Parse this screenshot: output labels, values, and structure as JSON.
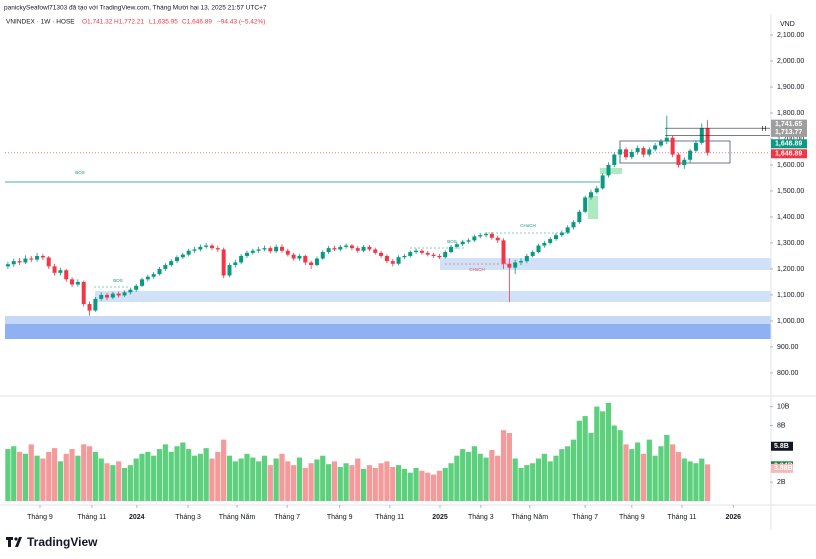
{
  "header": {
    "attribution": "panickySeafowl71303 đã tạo với TradingView.com, Tháng Mười hai 13, 2025 21:57 UTC+7",
    "brand": "TradingView"
  },
  "chart_data": [
    {
      "type": "candlestick",
      "title": "VNINDEX · 1W · HOSE",
      "ohlc_labels": [
        "O1,741.32",
        "H1,772.21",
        "L1,635.95",
        "C1,646.89",
        "−94.43 (−5.42%)"
      ],
      "currency": "VND",
      "up_color": "#089981",
      "down_color": "#f23645",
      "xlim": [
        -0.5,
        130.7
      ],
      "xticks": [
        {
          "value": 5.5,
          "label": "Tháng 9"
        },
        {
          "value": 14.4,
          "label": "Tháng 11"
        },
        {
          "value": 22.1,
          "label": "2024"
        },
        {
          "value": 30.9,
          "label": "Tháng 3"
        },
        {
          "value": 39.3,
          "label": "Tháng Năm"
        },
        {
          "value": 47.9,
          "label": "Tháng 7"
        },
        {
          "value": 56.9,
          "label": "Tháng 9"
        },
        {
          "value": 65.5,
          "label": "Tháng 11"
        },
        {
          "value": 74.1,
          "label": "2025"
        },
        {
          "value": 81.1,
          "label": "Tháng 3"
        },
        {
          "value": 89.5,
          "label": "Tháng Năm"
        },
        {
          "value": 99.0,
          "label": "Tháng 7"
        },
        {
          "value": 107.0,
          "label": "Tháng 9"
        },
        {
          "value": 115.6,
          "label": "Tháng 11"
        },
        {
          "value": 124.4,
          "label": "2026"
        }
      ],
      "ylim": [
        715,
        2177
      ],
      "yticks": [
        {
          "value": 800,
          "label": "800.00"
        },
        {
          "value": 900,
          "label": "900.00"
        },
        {
          "value": 1000,
          "label": "1,000.00"
        },
        {
          "value": 1100,
          "label": "1,100.00"
        },
        {
          "value": 1200,
          "label": "1,200.00"
        },
        {
          "value": 1300,
          "label": "1,300.00"
        },
        {
          "value": 1400,
          "label": "1,400.00"
        },
        {
          "value": 1500,
          "label": "1,500.00"
        },
        {
          "value": 1600,
          "label": "1,600.00"
        },
        {
          "value": 1700,
          "label": "1,700.00"
        },
        {
          "value": 1800,
          "label": "1,800.00"
        },
        {
          "value": 1900,
          "label": "1,900.00"
        },
        {
          "value": 2000,
          "label": "2,000.00"
        },
        {
          "value": 2100,
          "label": "2,100.00"
        }
      ],
      "price_labels": [
        {
          "value": 1741.65,
          "label": "1,741.65",
          "color": "#9e9e9e"
        },
        {
          "value": 1713.77,
          "label": "1,713.77",
          "color": "#9e9e9e"
        },
        {
          "value": 1646.89,
          "label": "1,646.89",
          "color": "#089981"
        },
        {
          "value": 1646.89,
          "label": "1,646.89",
          "color": "#f23645"
        }
      ],
      "annotations": [
        "BOS",
        "BOS",
        "BOS",
        "CHoCH",
        "CHoCH",
        "H"
      ],
      "open": [
        1210,
        1218,
        1230,
        1225,
        1240,
        1236,
        1250,
        1244,
        1210,
        1185,
        1195,
        1160,
        1140,
        1150,
        1065,
        1040,
        1085,
        1100,
        1090,
        1105,
        1098,
        1110,
        1120,
        1135,
        1160,
        1170,
        1180,
        1200,
        1215,
        1230,
        1245,
        1255,
        1270,
        1275,
        1285,
        1290,
        1280,
        1275,
        1175,
        1215,
        1225,
        1250,
        1262,
        1270,
        1275,
        1280,
        1268,
        1285,
        1270,
        1255,
        1240,
        1250,
        1225,
        1215,
        1240,
        1265,
        1280,
        1275,
        1285,
        1290,
        1280,
        1270,
        1285,
        1275,
        1262,
        1250,
        1230,
        1220,
        1245,
        1250,
        1265,
        1270,
        1262,
        1255,
        1250,
        1245,
        1265,
        1285,
        1295,
        1305,
        1310,
        1325,
        1330,
        1335,
        1320,
        1310,
        1220,
        1205,
        1225,
        1230,
        1250,
        1265,
        1290,
        1300,
        1315,
        1330,
        1340,
        1360,
        1380,
        1420,
        1475,
        1495,
        1510,
        1560,
        1600,
        1640,
        1660,
        1630,
        1650,
        1665,
        1640,
        1660,
        1675,
        1690,
        1705,
        1640,
        1600,
        1620,
        1655,
        1685,
        1741.32
      ],
      "high": [
        1228,
        1240,
        1242,
        1252,
        1250,
        1262,
        1258,
        1250,
        1220,
        1205,
        1200,
        1168,
        1160,
        1155,
        1075,
        1092,
        1110,
        1108,
        1112,
        1112,
        1118,
        1128,
        1142,
        1166,
        1178,
        1188,
        1208,
        1222,
        1238,
        1252,
        1262,
        1278,
        1285,
        1294,
        1300,
        1298,
        1290,
        1282,
        1222,
        1235,
        1258,
        1270,
        1278,
        1285,
        1290,
        1288,
        1294,
        1295,
        1278,
        1262,
        1258,
        1255,
        1232,
        1248,
        1272,
        1288,
        1290,
        1292,
        1298,
        1296,
        1288,
        1292,
        1292,
        1282,
        1270,
        1256,
        1238,
        1252,
        1258,
        1272,
        1278,
        1276,
        1270,
        1262,
        1258,
        1272,
        1292,
        1302,
        1312,
        1318,
        1332,
        1338,
        1342,
        1342,
        1328,
        1318,
        1240,
        1235,
        1240,
        1258,
        1272,
        1298,
        1308,
        1322,
        1338,
        1348,
        1368,
        1388,
        1428,
        1482,
        1505,
        1520,
        1568,
        1610,
        1650,
        1672,
        1668,
        1660,
        1675,
        1672,
        1668,
        1685,
        1700,
        1790,
        1712,
        1648,
        1630,
        1662,
        1695,
        1760,
        1772.21
      ],
      "low": [
        1200,
        1208,
        1215,
        1218,
        1226,
        1228,
        1234,
        1200,
        1175,
        1175,
        1150,
        1130,
        1132,
        1055,
        1020,
        1035,
        1078,
        1080,
        1084,
        1090,
        1092,
        1102,
        1112,
        1130,
        1152,
        1162,
        1175,
        1192,
        1208,
        1222,
        1238,
        1248,
        1262,
        1268,
        1278,
        1272,
        1265,
        1165,
        1168,
        1205,
        1218,
        1242,
        1255,
        1262,
        1268,
        1260,
        1262,
        1262,
        1248,
        1232,
        1232,
        1215,
        1200,
        1210,
        1235,
        1258,
        1268,
        1268,
        1278,
        1272,
        1262,
        1264,
        1268,
        1255,
        1242,
        1222,
        1210,
        1214,
        1238,
        1244,
        1258,
        1255,
        1248,
        1242,
        1238,
        1240,
        1260,
        1278,
        1288,
        1298,
        1304,
        1318,
        1322,
        1312,
        1300,
        1200,
        1073,
        1180,
        1215,
        1222,
        1244,
        1260,
        1282,
        1294,
        1308,
        1322,
        1334,
        1352,
        1374,
        1414,
        1466,
        1488,
        1505,
        1552,
        1592,
        1630,
        1620,
        1622,
        1640,
        1630,
        1632,
        1652,
        1668,
        1680,
        1630,
        1590,
        1585,
        1610,
        1648,
        1678,
        1635.95
      ],
      "close": [
        1218,
        1230,
        1225,
        1240,
        1236,
        1250,
        1244,
        1210,
        1185,
        1195,
        1160,
        1140,
        1150,
        1065,
        1040,
        1085,
        1100,
        1090,
        1105,
        1098,
        1110,
        1120,
        1135,
        1160,
        1170,
        1180,
        1200,
        1215,
        1230,
        1245,
        1255,
        1270,
        1275,
        1285,
        1290,
        1280,
        1275,
        1175,
        1215,
        1225,
        1250,
        1262,
        1270,
        1275,
        1280,
        1268,
        1285,
        1270,
        1255,
        1240,
        1250,
        1225,
        1215,
        1240,
        1265,
        1280,
        1275,
        1285,
        1290,
        1280,
        1270,
        1285,
        1275,
        1262,
        1250,
        1230,
        1220,
        1245,
        1250,
        1265,
        1270,
        1262,
        1255,
        1250,
        1245,
        1265,
        1285,
        1295,
        1305,
        1310,
        1325,
        1330,
        1335,
        1320,
        1310,
        1220,
        1205,
        1225,
        1230,
        1250,
        1265,
        1290,
        1300,
        1315,
        1330,
        1340,
        1360,
        1380,
        1420,
        1475,
        1495,
        1510,
        1560,
        1600,
        1640,
        1660,
        1630,
        1650,
        1665,
        1640,
        1660,
        1675,
        1690,
        1705,
        1640,
        1600,
        1620,
        1655,
        1685,
        1741,
        1646.89
      ]
    },
    {
      "type": "volume",
      "up_color": "#5cd07c",
      "down_color": "#f49a9a",
      "xlim": [
        -0.5,
        130.7
      ],
      "ylim": [
        0,
        10.7
      ],
      "yticks": [
        {
          "value": 2,
          "label": "2B"
        },
        {
          "value": 8,
          "label": "8B"
        },
        {
          "value": 10,
          "label": "10B"
        }
      ],
      "badges": [
        {
          "value": 5.8,
          "label": "5.8B",
          "color": "#131722"
        },
        {
          "value": 3.94,
          "label": "3.94B",
          "color": "#1e7d3a"
        },
        {
          "value": 3.88,
          "label": "3.88B",
          "color": "#f6b8b8"
        }
      ],
      "values": [
        5.5,
        5.8,
        5.2,
        5.0,
        6.0,
        4.8,
        4.5,
        5.2,
        5.6,
        4.2,
        5.0,
        5.5,
        4.8,
        6.0,
        5.8,
        5.2,
        4.5,
        4.0,
        3.8,
        4.2,
        3.5,
        3.8,
        4.5,
        5.0,
        5.2,
        4.8,
        5.5,
        6.0,
        5.2,
        5.8,
        6.2,
        5.5,
        4.8,
        5.0,
        5.6,
        4.5,
        5.2,
        6.5,
        4.8,
        4.2,
        4.5,
        5.0,
        4.6,
        4.2,
        4.8,
        3.8,
        4.5,
        5.0,
        4.2,
        3.8,
        4.6,
        3.5,
        4.0,
        4.4,
        4.8,
        3.9,
        4.2,
        3.6,
        4.0,
        3.8,
        4.5,
        3.4,
        3.8,
        3.5,
        4.0,
        4.2,
        3.6,
        3.8,
        3.4,
        3.0,
        3.5,
        3.2,
        3.0,
        2.8,
        3.2,
        3.5,
        4.0,
        4.8,
        5.5,
        5.2,
        5.8,
        5.0,
        4.6,
        5.4,
        4.8,
        7.5,
        7.2,
        4.5,
        3.5,
        3.8,
        4.0,
        4.5,
        5.0,
        4.2,
        4.8,
        5.5,
        5.8,
        6.5,
        8.5,
        9.0,
        7.2,
        10.0,
        9.5,
        10.4,
        8.0,
        7.5,
        6.0,
        5.5,
        6.2,
        5.0,
        6.5,
        4.8,
        5.8,
        7.0,
        6.0,
        5.2,
        4.5,
        4.2,
        4.0,
        4.5,
        3.88
      ]
    }
  ]
}
